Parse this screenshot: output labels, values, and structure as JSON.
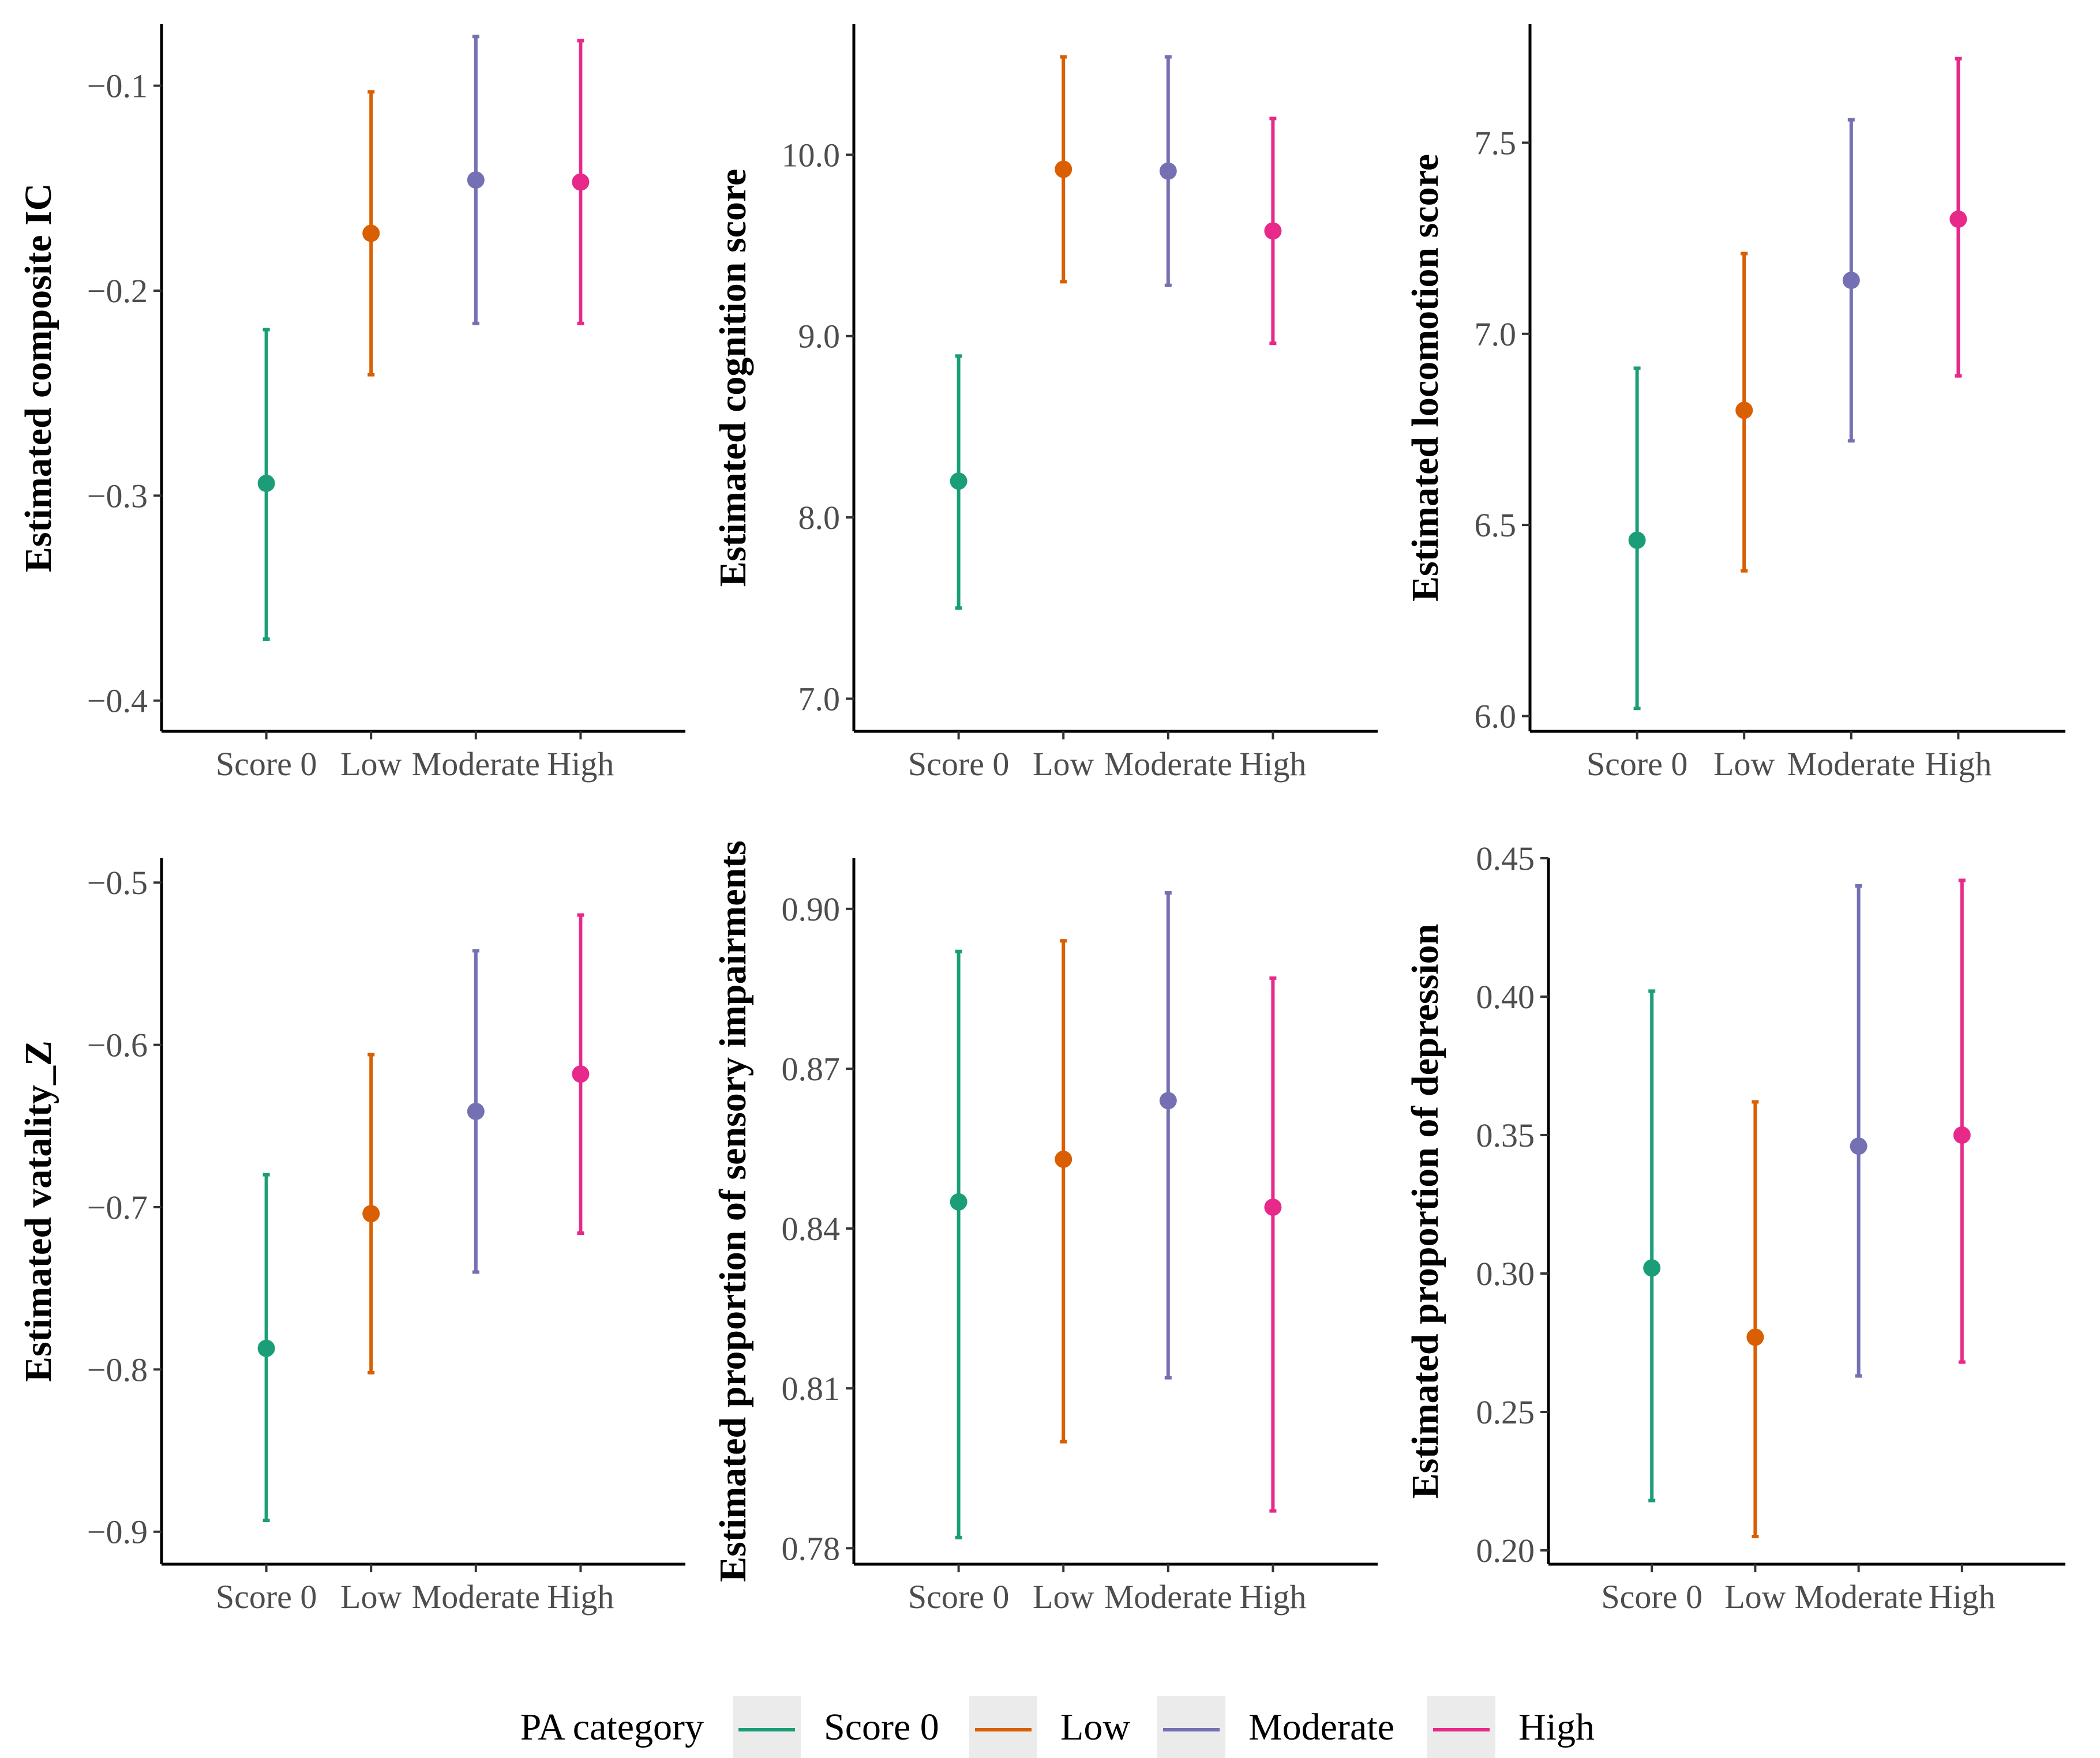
{
  "legend": {
    "title": "PA category",
    "entries": [
      {
        "label": "Score 0",
        "color": "#1B9E77"
      },
      {
        "label": "Low",
        "color": "#D95F02"
      },
      {
        "label": "Moderate",
        "color": "#7570B3"
      },
      {
        "label": "High",
        "color": "#E7298A"
      }
    ]
  },
  "chart_data": [
    {
      "type": "errorbar",
      "ylabel": "Estimated composite IC",
      "categories": [
        "Score 0",
        "Low",
        "Moderate",
        "High"
      ],
      "ylim": [
        -0.415,
        -0.07
      ],
      "yticks": [
        -0.4,
        -0.3,
        -0.2,
        -0.1
      ],
      "ytick_labels": [
        "−0.4",
        "−0.3",
        "−0.2",
        "−0.1"
      ],
      "estimate": [
        -0.294,
        -0.172,
        -0.146,
        -0.147
      ],
      "lower": [
        -0.37,
        -0.241,
        -0.216,
        -0.216
      ],
      "upper": [
        -0.219,
        -0.103,
        -0.076,
        -0.078
      ]
    },
    {
      "type": "errorbar",
      "ylabel": "Estimated cognition score",
      "categories": [
        "Score 0",
        "Low",
        "Moderate",
        "High"
      ],
      "ylim": [
        6.82,
        10.72
      ],
      "yticks": [
        7.0,
        8.0,
        9.0,
        10.0
      ],
      "ytick_labels": [
        "7.0",
        "8.0",
        "9.0",
        "10.0"
      ],
      "estimate": [
        8.2,
        9.92,
        9.91,
        9.58
      ],
      "lower": [
        7.5,
        9.3,
        9.28,
        8.96
      ],
      "upper": [
        8.89,
        10.54,
        10.54,
        10.2
      ]
    },
    {
      "type": "errorbar",
      "ylabel": "Estimated locomotion score",
      "categories": [
        "Score 0",
        "Low",
        "Moderate",
        "High"
      ],
      "ylim": [
        5.96,
        7.81
      ],
      "yticks": [
        6.0,
        6.5,
        7.0,
        7.5
      ],
      "ytick_labels": [
        "6.0",
        "6.5",
        "7.0",
        "7.5"
      ],
      "estimate": [
        6.46,
        6.8,
        7.14,
        7.3
      ],
      "lower": [
        6.02,
        6.38,
        6.72,
        6.89
      ],
      "upper": [
        6.91,
        7.21,
        7.56,
        7.72
      ]
    },
    {
      "type": "errorbar",
      "ylabel": "Estimated vatality_Z",
      "categories": [
        "Score 0",
        "Low",
        "Moderate",
        "High"
      ],
      "ylim": [
        -0.92,
        -0.485
      ],
      "yticks": [
        -0.9,
        -0.8,
        -0.7,
        -0.6,
        -0.5
      ],
      "ytick_labels": [
        "−0.9",
        "−0.8",
        "−0.7",
        "−0.6",
        "−0.5"
      ],
      "estimate": [
        -0.787,
        -0.704,
        -0.641,
        -0.618
      ],
      "lower": [
        -0.893,
        -0.802,
        -0.74,
        -0.716
      ],
      "upper": [
        -0.68,
        -0.606,
        -0.542,
        -0.52
      ]
    },
    {
      "type": "errorbar",
      "ylabel": "Estimated proportion of sensory impairments",
      "categories": [
        "Score 0",
        "Low",
        "Moderate",
        "High"
      ],
      "ylim": [
        0.777,
        0.9095
      ],
      "yticks": [
        0.78,
        0.81,
        0.84,
        0.87,
        0.9
      ],
      "ytick_labels": [
        "0.78",
        "0.81",
        "0.84",
        "0.87",
        "0.90"
      ],
      "estimate": [
        0.845,
        0.853,
        0.864,
        0.844
      ],
      "lower": [
        0.782,
        0.8,
        0.812,
        0.787
      ],
      "upper": [
        0.892,
        0.894,
        0.903,
        0.887
      ]
    },
    {
      "type": "errorbar",
      "ylabel": "Estimated proportion of depression",
      "categories": [
        "Score 0",
        "Low",
        "Moderate",
        "High"
      ],
      "ylim": [
        0.195,
        0.45
      ],
      "yticks": [
        0.2,
        0.25,
        0.3,
        0.35,
        0.4,
        0.45
      ],
      "ytick_labels": [
        "0.20",
        "0.25",
        "0.30",
        "0.35",
        "0.40",
        "0.45"
      ],
      "estimate": [
        0.302,
        0.277,
        0.346,
        0.35
      ],
      "lower": [
        0.218,
        0.205,
        0.263,
        0.268
      ],
      "upper": [
        0.402,
        0.362,
        0.44,
        0.442
      ]
    }
  ]
}
